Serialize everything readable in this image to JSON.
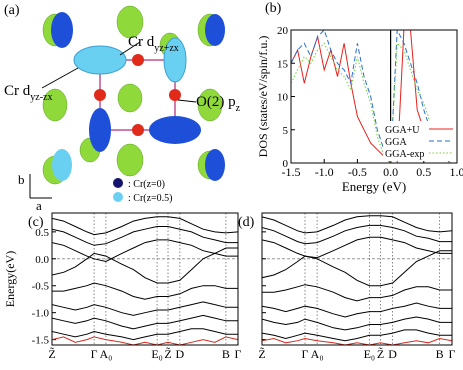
{
  "structure": {
    "panel_label": "(a)",
    "label_top": {
      "text": "Cr d",
      "sub": "yz+zx"
    },
    "label_left": {
      "text": "Cr d",
      "sub": "yz-zx"
    },
    "label_o": {
      "text": "O(2) p",
      "sub": "z"
    },
    "axis_b": "b",
    "axis_a": "a",
    "legend_dark": ": Cr(z=0)",
    "legend_light": ": Cr(z=0.5)"
  },
  "chart_data": [
    {
      "type": "line",
      "panel_label": "(b)",
      "xlabel": "Energy (eV)",
      "ylabel": "DOS (states/eV/spin/f.u.)",
      "x": [
        -1.5,
        -1.4,
        -1.3,
        -1.2,
        -1.1,
        -1.0,
        -0.9,
        -0.8,
        -0.7,
        -0.6,
        -0.5,
        -0.4,
        -0.3,
        -0.2,
        -0.1,
        0.0,
        0.1,
        0.2,
        0.3,
        0.4,
        0.5,
        0.6,
        0.7,
        0.8,
        0.9,
        1.0
      ],
      "xlim": [
        -1.5,
        1.0
      ],
      "ylim": [
        0,
        20
      ],
      "xticks": [
        -1.5,
        {
          "value": -1,
          "label": "-1.0"
        },
        -0.5,
        {
          "value": 0,
          "label": "0.0"
        },
        0.5,
        {
          "value": 1,
          "label": "1.0"
        }
      ],
      "yticks": [
        0,
        5,
        10,
        15,
        20
      ],
      "vline": 0,
      "legend": "lower right",
      "series": [
        {
          "name": "GGA+U",
          "color": "#e8201c",
          "style": "solid",
          "values": [
            15,
            17,
            12,
            16,
            19,
            14,
            17,
            13,
            18,
            12,
            7,
            5,
            3,
            2,
            1,
            0,
            0,
            20,
            20,
            8,
            5,
            4,
            2,
            1,
            0,
            0
          ]
        },
        {
          "name": "GGA",
          "color": "#2a6fd6",
          "style": "dashed",
          "values": [
            15,
            17,
            18,
            16,
            19,
            20,
            17,
            15,
            14,
            12,
            18,
            13,
            10,
            5,
            2,
            0,
            20,
            18,
            15,
            12,
            8,
            5,
            3,
            1,
            0,
            0
          ]
        },
        {
          "name": "GGA-exp",
          "color": "#6fd23a",
          "style": "dotted",
          "values": [
            12,
            14,
            16,
            15,
            17,
            18,
            16,
            14,
            13,
            11,
            16,
            12,
            9,
            4,
            1,
            0,
            18,
            17,
            14,
            11,
            9,
            6,
            3,
            1,
            0,
            0
          ]
        }
      ]
    },
    {
      "type": "line",
      "panel_label": "(c)",
      "ylabel": "Energy(eV)",
      "x": [
        0,
        0.5,
        1,
        1.5,
        1.81,
        2.32,
        3,
        3.5,
        4,
        4.52,
        4.99,
        5.5,
        6,
        6.5,
        7,
        7.48,
        8
      ],
      "xlim": [
        0,
        8
      ],
      "ylim": [
        -1.6,
        0.85
      ],
      "xticks": [
        {
          "value": 0,
          "label": "Z̃"
        },
        {
          "value": 1.81,
          "label": "Γ"
        },
        {
          "value": 2.32,
          "label": "A₀"
        },
        {
          "value": 4.52,
          "label": "E₀"
        },
        {
          "value": 4.99,
          "label": "Z̃"
        },
        {
          "value": 5.5,
          "label": "D"
        },
        {
          "value": 7.48,
          "label": "B"
        },
        {
          "value": 8,
          "label": "Γ"
        }
      ],
      "yticks": [
        0.5,
        {
          "value": 0,
          "label": "0.0"
        },
        -0.5,
        {
          "value": -1,
          "label": "-1.0"
        },
        -1.5
      ],
      "hline": 0,
      "xgrid": true,
      "ytick_labels": true,
      "series": [
        {
          "color": "#000000",
          "values": [
            0.75,
            0.7,
            0.6,
            0.5,
            0.45,
            0.48,
            0.6,
            0.7,
            0.75,
            0.78,
            0.78,
            0.75,
            0.65,
            0.55,
            0.5,
            0.48,
            0.5
          ]
        },
        {
          "color": "#000000",
          "values": [
            0.55,
            0.5,
            0.4,
            0.3,
            0.25,
            0.28,
            0.4,
            0.5,
            0.55,
            0.6,
            0.6,
            0.55,
            0.5,
            0.4,
            0.35,
            0.3,
            0.3
          ]
        },
        {
          "color": "#000000",
          "values": [
            0.3,
            0.25,
            0.15,
            0.05,
            0,
            -0.05,
            0.1,
            0.2,
            0.3,
            0.35,
            0.35,
            0.3,
            0.25,
            0.15,
            0.1,
            0.05,
            0.05
          ]
        },
        {
          "color": "#000000",
          "values": [
            -0.3,
            -0.25,
            -0.15,
            0,
            0.1,
            0.05,
            -0.1,
            -0.2,
            -0.35,
            -0.45,
            -0.45,
            -0.4,
            -0.2,
            0,
            0.1,
            0.2,
            0.2
          ]
        },
        {
          "color": "#000000",
          "values": [
            -0.6,
            -0.6,
            -0.55,
            -0.5,
            -0.45,
            -0.5,
            -0.6,
            -0.7,
            -0.75,
            -0.7,
            -0.7,
            -0.65,
            -0.55,
            -0.5,
            -0.5,
            -0.55,
            -0.55
          ]
        },
        {
          "color": "#000000",
          "values": [
            -0.85,
            -0.9,
            -0.95,
            -0.9,
            -0.85,
            -0.9,
            -1.0,
            -1.05,
            -1.0,
            -0.95,
            -0.95,
            -0.9,
            -0.85,
            -0.8,
            -0.85,
            -0.9,
            -0.9
          ]
        },
        {
          "color": "#000000",
          "values": [
            -1.1,
            -1.15,
            -1.2,
            -1.15,
            -1.1,
            -1.15,
            -1.25,
            -1.3,
            -1.25,
            -1.2,
            -1.2,
            -1.15,
            -1.1,
            -1.05,
            -1.1,
            -1.15,
            -1.15
          ]
        },
        {
          "color": "#000000",
          "values": [
            -1.35,
            -1.4,
            -1.45,
            -1.4,
            -1.35,
            -1.4,
            -1.45,
            -1.5,
            -1.45,
            -1.4,
            -1.4,
            -1.35,
            -1.3,
            -1.3,
            -1.35,
            -1.4,
            -1.4
          ]
        },
        {
          "color": "#d42a1e",
          "values": [
            -1.5,
            -1.45,
            -1.55,
            -1.5,
            -1.45,
            -1.5,
            -1.55,
            -1.6,
            -1.55,
            -1.6,
            -1.55,
            -1.6,
            -1.55,
            -1.5,
            -1.55,
            -1.45,
            -1.5
          ]
        }
      ]
    },
    {
      "type": "line",
      "panel_label": "(d)",
      "x": [
        0,
        0.5,
        1,
        1.5,
        1.81,
        2.32,
        3,
        3.5,
        4,
        4.52,
        4.99,
        5.5,
        6,
        6.5,
        7,
        7.48,
        8
      ],
      "xlim": [
        0,
        8
      ],
      "ylim": [
        -1.6,
        0.85
      ],
      "xticks": [
        {
          "value": 0,
          "label": "Z̃"
        },
        {
          "value": 1.81,
          "label": "Γ"
        },
        {
          "value": 2.32,
          "label": "A₀"
        },
        {
          "value": 4.52,
          "label": "E₀"
        },
        {
          "value": 4.99,
          "label": "Z̃"
        },
        {
          "value": 5.5,
          "label": "D"
        },
        {
          "value": 7.48,
          "label": "B"
        },
        {
          "value": 8,
          "label": "Γ"
        }
      ],
      "yticks": [
        0.5,
        {
          "value": 0,
          "label": "0.0"
        },
        -0.5,
        {
          "value": -1,
          "label": "-1.0"
        },
        -1.5
      ],
      "hline": 0,
      "xgrid": true,
      "ytick_labels": false,
      "series": [
        {
          "color": "#000000",
          "values": [
            0.78,
            0.72,
            0.62,
            0.52,
            0.48,
            0.5,
            0.62,
            0.72,
            0.78,
            0.8,
            0.8,
            0.78,
            0.68,
            0.58,
            0.52,
            0.5,
            0.52
          ]
        },
        {
          "color": "#000000",
          "values": [
            0.58,
            0.52,
            0.42,
            0.32,
            0.28,
            0.3,
            0.42,
            0.52,
            0.58,
            0.62,
            0.62,
            0.58,
            0.52,
            0.42,
            0.38,
            0.32,
            0.32
          ]
        },
        {
          "color": "#000000",
          "values": [
            0.35,
            0.3,
            0.2,
            0.1,
            0.05,
            0.02,
            0.15,
            0.25,
            0.35,
            0.4,
            0.4,
            0.35,
            0.3,
            0.2,
            0.15,
            0.1,
            0.1
          ]
        },
        {
          "color": "#000000",
          "values": [
            -0.35,
            -0.3,
            -0.2,
            -0.05,
            0.05,
            0,
            -0.15,
            -0.25,
            -0.4,
            -0.5,
            -0.5,
            -0.45,
            -0.25,
            -0.05,
            0.05,
            0.15,
            0.15
          ]
        },
        {
          "color": "#000000",
          "values": [
            -0.62,
            -0.62,
            -0.58,
            -0.52,
            -0.48,
            -0.52,
            -0.62,
            -0.72,
            -0.78,
            -0.72,
            -0.72,
            -0.68,
            -0.58,
            -0.52,
            -0.52,
            -0.58,
            -0.58
          ]
        },
        {
          "color": "#000000",
          "values": [
            -0.88,
            -0.92,
            -0.98,
            -0.92,
            -0.88,
            -0.92,
            -1.02,
            -1.08,
            -1.02,
            -0.98,
            -0.98,
            -0.92,
            -0.88,
            -0.82,
            -0.88,
            -0.92,
            -0.92
          ]
        },
        {
          "color": "#000000",
          "values": [
            -1.12,
            -1.18,
            -1.22,
            -1.18,
            -1.12,
            -1.18,
            -1.28,
            -1.32,
            -1.28,
            -1.22,
            -1.22,
            -1.18,
            -1.12,
            -1.08,
            -1.12,
            -1.18,
            -1.18
          ]
        },
        {
          "color": "#000000",
          "values": [
            -1.38,
            -1.42,
            -1.48,
            -1.42,
            -1.38,
            -1.42,
            -1.48,
            -1.52,
            -1.48,
            -1.42,
            -1.42,
            -1.38,
            -1.32,
            -1.32,
            -1.38,
            -1.42,
            -1.42
          ]
        },
        {
          "color": "#d42a1e",
          "values": [
            -1.52,
            -1.48,
            -1.56,
            -1.52,
            -1.48,
            -1.52,
            -1.56,
            -1.6,
            -1.56,
            -1.6,
            -1.56,
            -1.6,
            -1.56,
            -1.52,
            -1.56,
            -1.48,
            -1.52
          ]
        }
      ]
    }
  ]
}
